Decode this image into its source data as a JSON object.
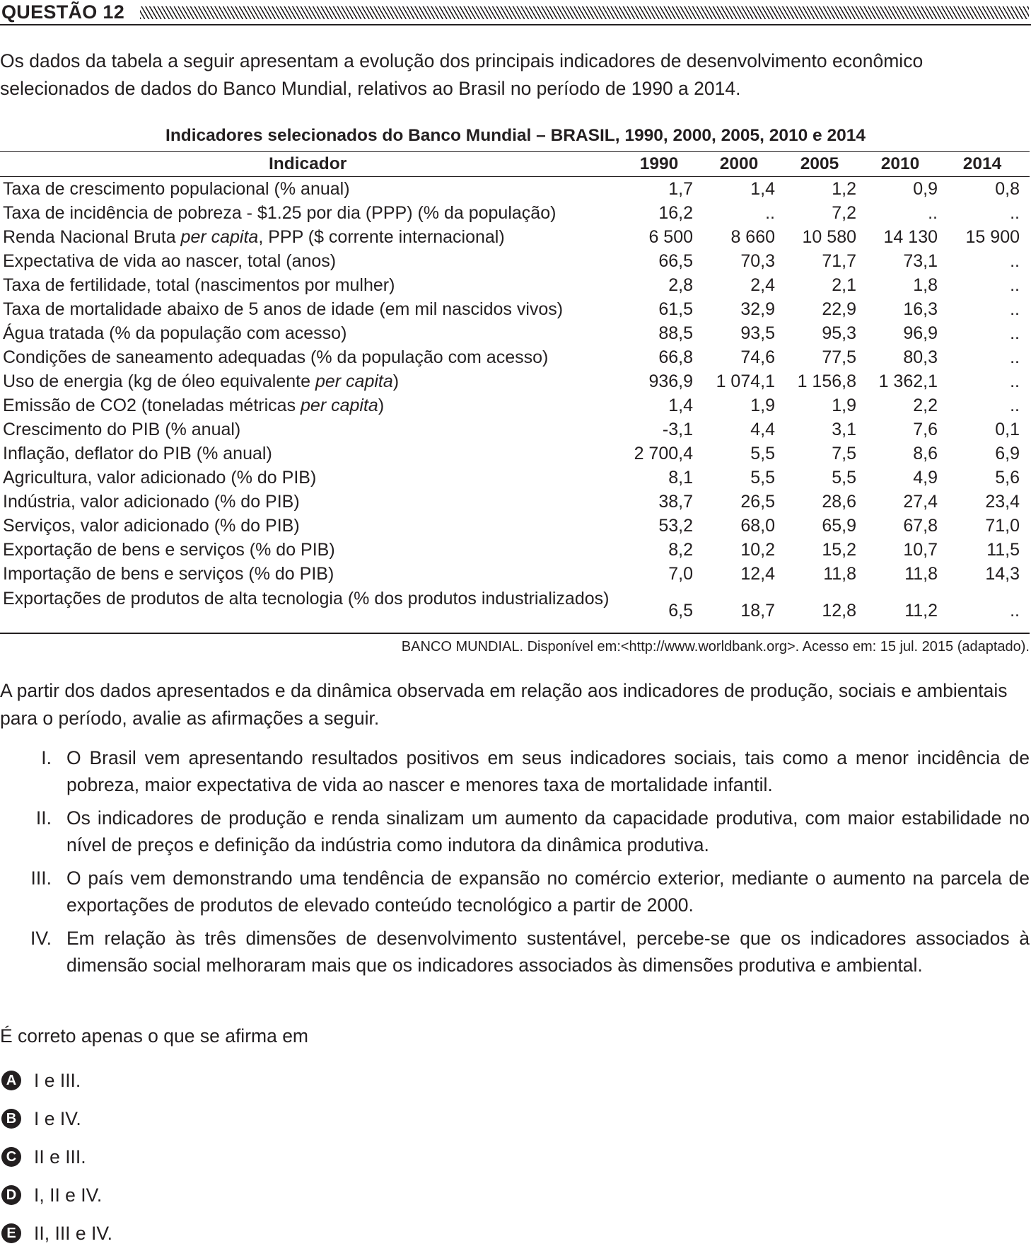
{
  "question_label": "QUESTÃO 12",
  "intro": "Os dados da tabela a seguir apresentam a evolução dos principais indicadores de desenvolvimento econômico selecionados de dados do Banco Mundial, relativos ao Brasil no período de 1990 a 2014.",
  "table": {
    "title": "Indicadores selecionados do Banco Mundial – BRASIL, 1990, 2000, 2005, 2010 e 2014",
    "header_indicator": "Indicador",
    "years": [
      "1990",
      "2000",
      "2005",
      "2010",
      "2014"
    ],
    "rows": [
      {
        "indicator": "Taxa de crescimento populacional (% anual)",
        "values": [
          "1,7",
          "1,4",
          "1,2",
          "0,9",
          "0,8"
        ]
      },
      {
        "indicator": "Taxa de incidência de pobreza - $1.25 por dia (PPP) (% da população)",
        "values": [
          "16,2",
          "..",
          "7,2",
          "..",
          ".."
        ]
      },
      {
        "indicator": "Renda Nacional Bruta per capita, PPP ($ corrente internacional)",
        "values": [
          "6 500",
          "8 660",
          "10 580",
          "14 130",
          "15 900"
        ]
      },
      {
        "indicator": "Expectativa de vida ao nascer, total (anos)",
        "values": [
          "66,5",
          "70,3",
          "71,7",
          "73,1",
          ".."
        ]
      },
      {
        "indicator": "Taxa de fertilidade, total (nascimentos por mulher)",
        "values": [
          "2,8",
          "2,4",
          "2,1",
          "1,8",
          ".."
        ]
      },
      {
        "indicator": "Taxa de mortalidade abaixo de 5 anos de idade (em mil nascidos vivos)",
        "values": [
          "61,5",
          "32,9",
          "22,9",
          "16,3",
          ".."
        ]
      },
      {
        "indicator": "Água tratada (% da população com acesso)",
        "values": [
          "88,5",
          "93,5",
          "95,3",
          "96,9",
          ".."
        ]
      },
      {
        "indicator": "Condições de saneamento adequadas (% da população com acesso)",
        "values": [
          "66,8",
          "74,6",
          "77,5",
          "80,3",
          ".."
        ]
      },
      {
        "indicator": "Uso de energia (kg de óleo equivalente per capita)",
        "values": [
          "936,9",
          "1 074,1",
          "1 156,8",
          "1 362,1",
          ".."
        ]
      },
      {
        "indicator": "Emissão de CO2 (toneladas métricas per capita)",
        "values": [
          "1,4",
          "1,9",
          "1,9",
          "2,2",
          ".."
        ]
      },
      {
        "indicator": "Crescimento do PIB (% anual)",
        "values": [
          "-3,1",
          "4,4",
          "3,1",
          "7,6",
          "0,1"
        ]
      },
      {
        "indicator": "Inflação, deflator do PIB (% anual)",
        "values": [
          "2 700,4",
          "5,5",
          "7,5",
          "8,6",
          "6,9"
        ]
      },
      {
        "indicator": "Agricultura, valor adicionado (% do PIB)",
        "values": [
          "8,1",
          "5,5",
          "5,5",
          "4,9",
          "5,6"
        ]
      },
      {
        "indicator": "Indústria, valor adicionado (% do PIB)",
        "values": [
          "38,7",
          "26,5",
          "28,6",
          "27,4",
          "23,4"
        ]
      },
      {
        "indicator": "Serviços, valor adicionado (% do PIB)",
        "values": [
          "53,2",
          "68,0",
          "65,9",
          "67,8",
          "71,0"
        ]
      },
      {
        "indicator": "Exportação de bens e serviços (% do PIB)",
        "values": [
          "8,2",
          "10,2",
          "15,2",
          "10,7",
          "11,5"
        ]
      },
      {
        "indicator": "Importação de bens e serviços (% do PIB)",
        "values": [
          "7,0",
          "12,4",
          "11,8",
          "11,8",
          "14,3"
        ]
      },
      {
        "indicator": "Exportações de produtos de alta tecnologia (% dos produtos industrializados)",
        "values": [
          "6,5",
          "18,7",
          "12,8",
          "11,2",
          ".."
        ]
      }
    ],
    "source": "BANCO MUNDIAL. Disponível em:<http://www.worldbank.org>. Acesso em: 15 jul. 2015 (adaptado)."
  },
  "lead": "A partir dos dados apresentados e da dinâmica observada em relação aos indicadores de produção, sociais e ambientais para o período, avalie as afirmações a seguir.",
  "statements": [
    {
      "numeral": "I.",
      "text": "O Brasil vem apresentando resultados positivos em seus indicadores sociais, tais como a menor incidência de pobreza, maior expectativa de vida ao nascer e menores taxa de mortalidade infantil."
    },
    {
      "numeral": "II.",
      "text": "Os indicadores de produção e renda sinalizam um aumento da capacidade produtiva, com maior estabilidade no nível de preços e definição da indústria como indutora da dinâmica produtiva."
    },
    {
      "numeral": "III.",
      "text": "O país vem demonstrando uma tendência de expansão no comércio exterior, mediante o aumento na parcela de exportações de produtos de elevado conteúdo tecnológico a partir de 2000."
    },
    {
      "numeral": "IV.",
      "text": "Em relação às três dimensões de desenvolvimento sustentável, percebe-se que os indicadores associados à dimensão social melhoraram mais que os indicadores associados às dimensões produtiva e ambiental."
    }
  ],
  "prompt": "É correto apenas o que se afirma em",
  "options": [
    {
      "letter": "A",
      "text": "I e III."
    },
    {
      "letter": "B",
      "text": "I e IV."
    },
    {
      "letter": "C",
      "text": "II e III."
    },
    {
      "letter": "D",
      "text": "I, II e IV."
    },
    {
      "letter": "E",
      "text": "II, III e IV."
    }
  ]
}
